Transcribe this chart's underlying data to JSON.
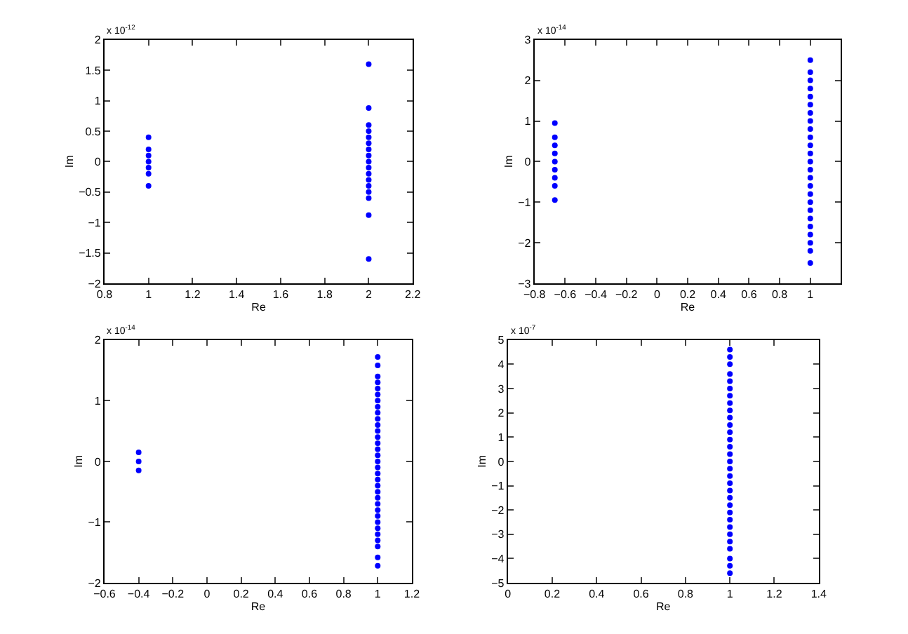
{
  "chart_data": [
    {
      "type": "scatter",
      "xlabel": "Re",
      "ylabel": "Im",
      "annotations": [
        "x 10$^{-12}$"
      ],
      "marker": "circle",
      "xlim": [
        0.8,
        2.2
      ],
      "xticks": [
        0.8,
        1,
        1.2,
        1.4,
        1.6,
        1.8,
        2,
        2.2
      ],
      "ylim": [
        -2,
        2
      ],
      "yticks": [
        -2,
        -1.5,
        -1,
        -0.5,
        0,
        0.5,
        1,
        1.5,
        2
      ],
      "series": [
        {
          "color": "#0000ff",
          "x": [
            1,
            1,
            1,
            1,
            1,
            1,
            1
          ],
          "values": [
            0.4,
            0.2,
            0.1,
            0,
            -0.1,
            -0.2,
            -0.4
          ]
        },
        {
          "color": "#0000ff",
          "x": [
            2,
            2,
            2,
            2,
            2,
            2,
            2,
            2,
            2,
            2,
            2,
            2,
            2,
            2,
            2,
            2,
            2
          ],
          "values": [
            1.6,
            0.88,
            0.6,
            0.5,
            0.4,
            0.3,
            0.2,
            0.1,
            0,
            -0.1,
            -0.2,
            -0.3,
            -0.4,
            -0.5,
            -0.6,
            -0.88,
            -1.6
          ]
        }
      ]
    },
    {
      "type": "scatter",
      "xlabel": "Re",
      "ylabel": "Im",
      "annotations": [
        "x 10$^{-14}$"
      ],
      "marker": "circle",
      "xlim": [
        -0.8,
        1.2
      ],
      "xticks": [
        -0.8,
        -0.6,
        -0.4,
        -0.2,
        0,
        0.2,
        0.4,
        0.6,
        0.8,
        1
      ],
      "ylim": [
        -3,
        3
      ],
      "yticks": [
        -3,
        -2,
        -1,
        0,
        1,
        2,
        3
      ],
      "series": [
        {
          "color": "#0000ff",
          "x": [
            -0.667,
            -0.667,
            -0.667,
            -0.667,
            -0.667,
            -0.667,
            -0.667,
            -0.667,
            -0.667
          ],
          "values": [
            0.95,
            0.6,
            0.4,
            0.2,
            0,
            -0.2,
            -0.4,
            -0.6,
            -0.95
          ]
        },
        {
          "color": "#0000ff",
          "x": [
            1,
            1,
            1,
            1,
            1,
            1,
            1,
            1,
            1,
            1,
            1,
            1,
            1,
            1,
            1,
            1,
            1,
            1,
            1,
            1,
            1,
            1,
            1,
            1,
            1
          ],
          "values": [
            2.5,
            2.2,
            2.0,
            1.8,
            1.6,
            1.4,
            1.2,
            1.0,
            0.8,
            0.6,
            0.4,
            0.2,
            0,
            -0.2,
            -0.4,
            -0.6,
            -0.8,
            -1.0,
            -1.2,
            -1.4,
            -1.6,
            -1.8,
            -2.0,
            -2.2,
            -2.5
          ]
        }
      ]
    },
    {
      "type": "scatter",
      "xlabel": "Re",
      "ylabel": "Im",
      "annotations": [
        "x 10$^{-14}$"
      ],
      "marker": "circle",
      "xlim": [
        -0.6,
        1.2
      ],
      "xticks": [
        -0.6,
        -0.4,
        -0.2,
        0,
        0.2,
        0.4,
        0.6,
        0.8,
        1,
        1.2
      ],
      "ylim": [
        -2,
        2
      ],
      "yticks": [
        -2,
        -1,
        0,
        1,
        2
      ],
      "series": [
        {
          "color": "#0000ff",
          "x": [
            -0.4,
            -0.4,
            -0.4
          ],
          "values": [
            0.15,
            0,
            -0.15
          ]
        },
        {
          "color": "#0000ff",
          "x": [
            1,
            1,
            1,
            1,
            1,
            1,
            1,
            1,
            1,
            1,
            1,
            1,
            1,
            1,
            1,
            1,
            1,
            1,
            1,
            1,
            1,
            1,
            1,
            1,
            1,
            1,
            1,
            1,
            1,
            1,
            1,
            1,
            1
          ],
          "values": [
            1.72,
            1.58,
            1.4,
            1.3,
            1.2,
            1.1,
            1.0,
            0.9,
            0.8,
            0.7,
            0.6,
            0.5,
            0.4,
            0.3,
            0.2,
            0.1,
            0,
            -0.1,
            -0.2,
            -0.3,
            -0.4,
            -0.5,
            -0.6,
            -0.7,
            -0.8,
            -0.9,
            -1.0,
            -1.1,
            -1.2,
            -1.3,
            -1.4,
            -1.58,
            -1.72
          ]
        }
      ]
    },
    {
      "type": "scatter",
      "xlabel": "Re",
      "ylabel": "Im",
      "annotations": [
        "x 10$^{-7}$"
      ],
      "marker": "circle",
      "xlim": [
        0,
        1.4
      ],
      "xticks": [
        0,
        0.2,
        0.4,
        0.6,
        0.8,
        1,
        1.2,
        1.4
      ],
      "ylim": [
        -5,
        5
      ],
      "yticks": [
        -5,
        -4,
        -3,
        -2,
        -1,
        0,
        1,
        2,
        3,
        4,
        5
      ],
      "series": [
        {
          "color": "#0000ff",
          "x": [
            1,
            1,
            1,
            1,
            1,
            1,
            1,
            1,
            1,
            1,
            1,
            1,
            1,
            1,
            1,
            1,
            1,
            1,
            1,
            1,
            1,
            1,
            1,
            1,
            1,
            1,
            1,
            1,
            1,
            1,
            1
          ],
          "values": [
            4.6,
            4.3,
            4.0,
            3.6,
            3.3,
            3.0,
            2.7,
            2.4,
            2.1,
            1.8,
            1.5,
            1.2,
            0.9,
            0.6,
            0.3,
            0,
            -0.3,
            -0.6,
            -0.9,
            -1.2,
            -1.5,
            -1.8,
            -2.1,
            -2.4,
            -2.7,
            -3.0,
            -3.3,
            -3.6,
            -4.0,
            -4.3,
            -4.6
          ]
        }
      ]
    }
  ]
}
